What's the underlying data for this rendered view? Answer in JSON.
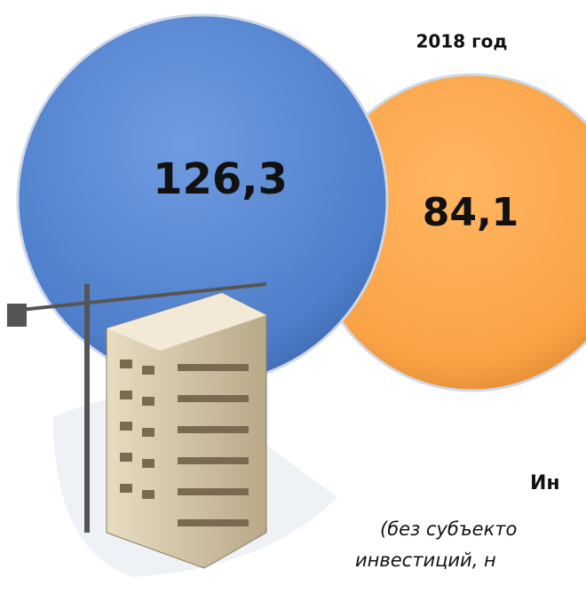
{
  "year_label": "2018 год",
  "circles": [
    {
      "value_text": "126,3"
    },
    {
      "value_text": "84,1"
    }
  ],
  "caption": {
    "title": "Ин",
    "line1": "(без субъекто",
    "line2": "инвестиций, н"
  }
}
